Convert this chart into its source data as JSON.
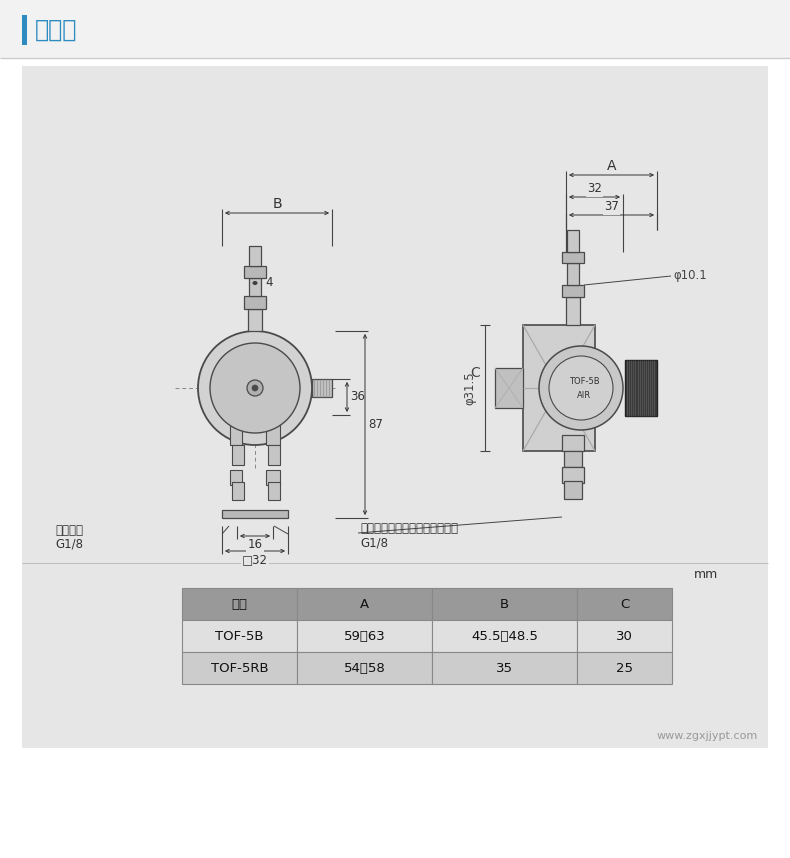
{
  "title": "尺寸图",
  "title_color": "#2E8BC0",
  "title_bar_color": "#2E8BC0",
  "outer_bg": "#ffffff",
  "header_bg": "#f2f2f2",
  "drawing_bg": "#e6e6e6",
  "line_color": "#4a4a4a",
  "dim_color": "#333333",
  "table_header_bg": "#999999",
  "table_row1_bg": "#e0e0e0",
  "table_row2_bg": "#cccccc",
  "table_border": "#888888",
  "website": "www.zgxjjypt.com",
  "table_headers": [
    "型号",
    "A",
    "B",
    "C"
  ],
  "table_row1": [
    "TOF-5B",
    "59～63",
    "45.5～48.5",
    "30"
  ],
  "table_row2": [
    "TOF-5RB",
    "54～58",
    "35",
    "25"
  ],
  "dim_labels": {
    "B": "B",
    "A": "A",
    "32": "32",
    "37": "37",
    "4": "4",
    "36": "36",
    "87": "87",
    "phi31_5": "φ31.5",
    "C": "C",
    "16": "16",
    "sq32": "□32",
    "phi10_1": "φ10.1",
    "liquid_in": "液体入口",
    "G1_8_left": "G1/8",
    "air_in": "雾化用空气、柱塞动作空气入口",
    "G1_8_right": "G1/8",
    "TOF5B": "TOF-5B",
    "AIR": "AIR",
    "mm": "mm"
  }
}
